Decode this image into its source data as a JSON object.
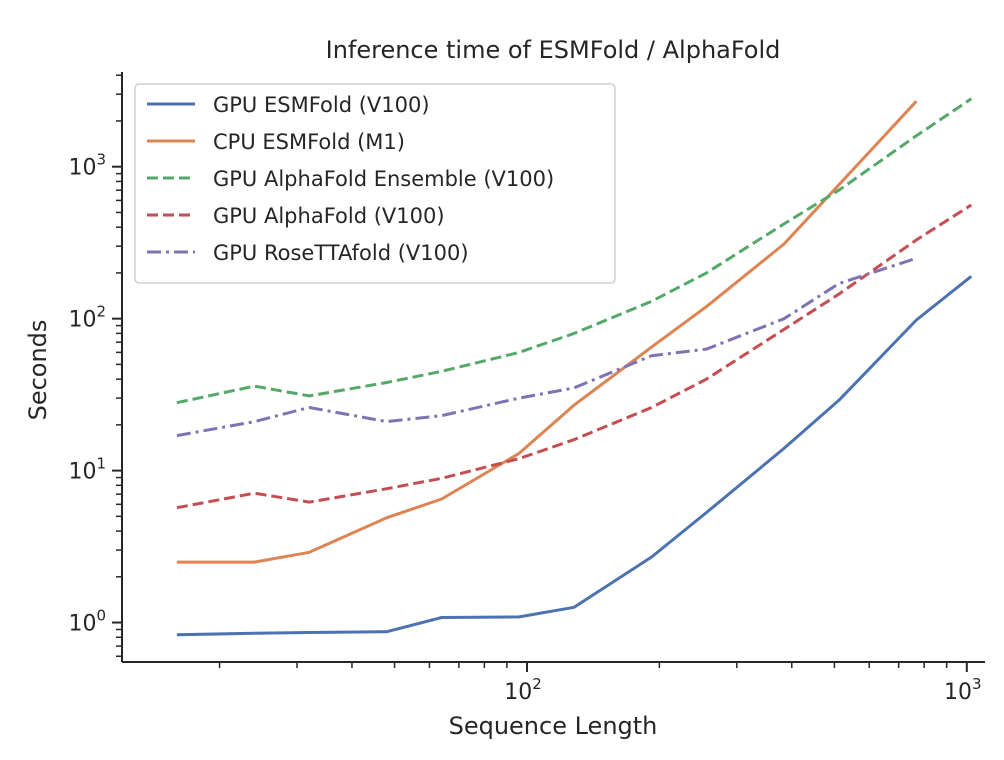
{
  "chart_data": {
    "type": "line",
    "title": "Inference time of ESMFold / AlphaFold",
    "xlabel": "Sequence Length",
    "ylabel": "Seconds",
    "xscale": "log",
    "yscale": "log",
    "xlim": [
      12,
      1100
    ],
    "ylim": [
      0.55,
      4200
    ],
    "grid": false,
    "legend_position": "top-left",
    "x_ticks": [
      {
        "base": "10",
        "exp": "2",
        "value": 100
      },
      {
        "base": "10",
        "exp": "3",
        "value": 1000
      }
    ],
    "y_ticks": [
      {
        "base": "10",
        "exp": "0",
        "value": 1
      },
      {
        "base": "10",
        "exp": "1",
        "value": 10
      },
      {
        "base": "10",
        "exp": "2",
        "value": 100
      },
      {
        "base": "10",
        "exp": "3",
        "value": 1000
      }
    ],
    "series": [
      {
        "name": "GPU ESMFold (V100)",
        "color": "#4c72b0",
        "dash": "solid",
        "x": [
          16,
          24,
          32,
          48,
          64,
          96,
          128,
          192,
          256,
          384,
          512,
          768,
          1024
        ],
        "y": [
          0.83,
          0.85,
          0.86,
          0.87,
          1.08,
          1.09,
          1.26,
          2.7,
          5.3,
          14,
          29,
          98,
          190
        ]
      },
      {
        "name": "CPU ESMFold (M1)",
        "color": "#dd8452",
        "dash": "solid",
        "x": [
          16,
          24,
          32,
          48,
          64,
          96,
          128,
          192,
          256,
          384,
          512,
          768
        ],
        "y": [
          2.5,
          2.5,
          2.9,
          4.9,
          6.5,
          13,
          27,
          65,
          120,
          310,
          760,
          2700
        ]
      },
      {
        "name": "GPU AlphaFold Ensemble (V100)",
        "color": "#55a868",
        "dash": "dashed",
        "x": [
          16,
          24,
          32,
          48,
          64,
          96,
          128,
          192,
          256,
          384,
          512,
          768,
          1024
        ],
        "y": [
          28,
          36,
          31,
          38,
          45,
          60,
          80,
          130,
          200,
          420,
          700,
          1600,
          2800
        ]
      },
      {
        "name": "GPU AlphaFold (V100)",
        "color": "#c44e52",
        "dash": "dashed",
        "x": [
          16,
          24,
          32,
          48,
          64,
          96,
          128,
          192,
          256,
          384,
          512,
          768,
          1024
        ],
        "y": [
          5.7,
          7.1,
          6.2,
          7.6,
          8.9,
          12,
          16,
          26,
          40,
          85,
          145,
          330,
          560
        ]
      },
      {
        "name": "GPU RoseTTAfold (V100)",
        "color": "#8172b3",
        "dash": "dashdot",
        "x": [
          16,
          24,
          32,
          48,
          64,
          96,
          128,
          192,
          256,
          384,
          512,
          768
        ],
        "y": [
          17,
          21,
          26,
          21,
          23,
          30,
          35,
          57,
          63,
          100,
          170,
          250
        ]
      }
    ]
  }
}
